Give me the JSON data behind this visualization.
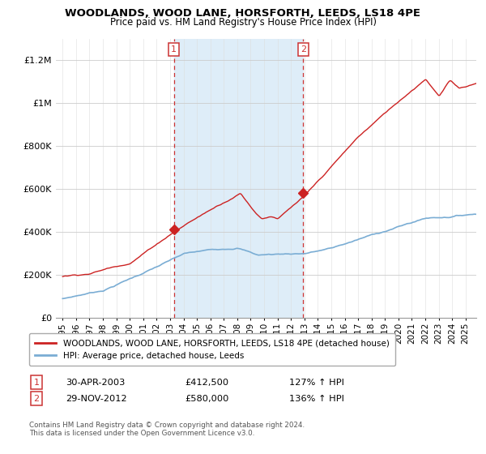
{
  "title": "WOODLANDS, WOOD LANE, HORSFORTH, LEEDS, LS18 4PE",
  "subtitle": "Price paid vs. HM Land Registry's House Price Index (HPI)",
  "legend_line1": "WOODLANDS, WOOD LANE, HORSFORTH, LEEDS, LS18 4PE (detached house)",
  "legend_line2": "HPI: Average price, detached house, Leeds",
  "footnote": "Contains HM Land Registry data © Crown copyright and database right 2024.\nThis data is licensed under the Open Government Licence v3.0.",
  "point1_date": "30-APR-2003",
  "point1_price": "£412,500",
  "point1_hpi": "127% ↑ HPI",
  "point1_year": 2003.29,
  "point1_value": 412500,
  "point2_date": "29-NOV-2012",
  "point2_price": "£580,000",
  "point2_hpi": "136% ↑ HPI",
  "point2_year": 2012.91,
  "point2_value": 580000,
  "shaded_x1": 2003.29,
  "shaded_x2": 2012.91,
  "hpi_color": "#7aadd4",
  "sale_color": "#cc2222",
  "vline_color": "#cc3333",
  "shaded_color": "#deedf8",
  "ylim_min": 0,
  "ylim_max": 1300000,
  "xlim_min": 1994.5,
  "xlim_max": 2025.8,
  "yticks": [
    0,
    200000,
    400000,
    600000,
    800000,
    1000000,
    1200000
  ],
  "ytick_labels": [
    "£0",
    "£200K",
    "£400K",
    "£600K",
    "£800K",
    "£1M",
    "£1.2M"
  ],
  "xticks": [
    1995,
    1996,
    1997,
    1998,
    1999,
    2000,
    2001,
    2002,
    2003,
    2004,
    2005,
    2006,
    2007,
    2008,
    2009,
    2010,
    2011,
    2012,
    2013,
    2014,
    2015,
    2016,
    2017,
    2018,
    2019,
    2020,
    2021,
    2022,
    2023,
    2024,
    2025
  ]
}
